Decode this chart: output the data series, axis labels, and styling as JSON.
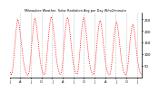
{
  "title": "Milwaukee Weather  Solar Radiation Avg per Day W/m2/minute",
  "line_color": "#FF0000",
  "bg_color": "#FFFFFF",
  "plot_bg": "#FFFFFF",
  "grid_color": "#AAAAAA",
  "ylim": [
    0,
    280
  ],
  "yticks": [
    50,
    100,
    150,
    200,
    250
  ],
  "ytick_labels": [
    "50",
    "100",
    "150",
    "200",
    "250"
  ],
  "num_grid_lines": 8,
  "values": [
    30,
    20,
    10,
    18,
    40,
    80,
    120,
    160,
    200,
    230,
    250,
    240,
    220,
    190,
    160,
    130,
    100,
    70,
    50,
    35,
    20,
    15,
    10,
    12,
    25,
    55,
    95,
    140,
    175,
    210,
    240,
    255,
    245,
    220,
    190,
    155,
    120,
    88,
    62,
    42,
    28,
    18,
    12,
    14,
    30,
    62,
    105,
    150,
    188,
    220,
    248,
    260,
    252,
    228,
    198,
    162,
    126,
    92,
    65,
    44,
    30,
    20,
    13,
    15,
    32,
    65,
    108,
    155,
    192,
    222,
    248,
    258,
    248,
    222,
    190,
    155,
    120,
    88,
    62,
    42,
    28,
    20,
    14,
    16,
    34,
    68,
    112,
    158,
    195,
    225,
    250,
    258,
    245,
    218,
    185,
    150,
    115,
    82,
    58,
    38,
    25,
    18,
    12,
    15,
    32,
    64,
    106,
    150,
    186,
    215,
    238,
    245,
    232,
    205,
    172,
    138,
    104,
    74,
    51,
    34,
    22,
    16,
    11,
    14,
    30,
    60,
    100,
    144,
    180,
    210,
    232,
    238,
    224,
    198,
    166,
    132,
    100,
    71,
    49,
    32,
    21,
    15,
    10,
    14,
    30,
    58,
    96,
    140,
    174,
    202,
    222,
    228,
    215,
    190,
    158,
    125,
    94,
    66,
    46,
    30,
    19,
    14,
    10
  ],
  "n_per_year": 52,
  "xtick_positions": [
    0,
    13,
    26,
    39,
    52,
    65,
    78,
    91,
    104,
    117,
    130,
    143,
    156
  ],
  "xtick_labels": [
    "J",
    "A",
    "J",
    "O",
    "J",
    "A",
    "J",
    "O",
    "J",
    "A",
    "J",
    "O",
    "J"
  ]
}
